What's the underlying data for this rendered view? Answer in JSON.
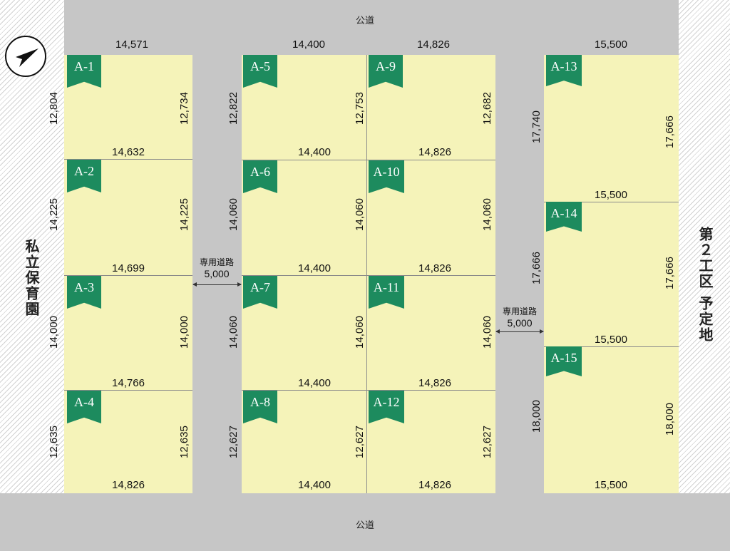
{
  "roads": {
    "top": "公道",
    "bottom": "公道"
  },
  "side_labels": {
    "left": "私立保育園",
    "right": "第２工区 予定地"
  },
  "private_roads": [
    {
      "label": "専用道路",
      "width": "5,000"
    },
    {
      "label": "専用道路",
      "width": "5,000"
    }
  ],
  "north_icon": "north-arrow-icon",
  "colors": {
    "lot": "#f5f3b9",
    "tag": "#1d8b5e",
    "road": "#c6c6c6"
  },
  "lots": [
    {
      "id": "A-1"
    },
    {
      "id": "A-2"
    },
    {
      "id": "A-3"
    },
    {
      "id": "A-4"
    },
    {
      "id": "A-5"
    },
    {
      "id": "A-6"
    },
    {
      "id": "A-7"
    },
    {
      "id": "A-8"
    },
    {
      "id": "A-9"
    },
    {
      "id": "A-10"
    },
    {
      "id": "A-11"
    },
    {
      "id": "A-12"
    },
    {
      "id": "A-13"
    },
    {
      "id": "A-14"
    },
    {
      "id": "A-15"
    }
  ],
  "dims": {
    "col1_widths": [
      "14,571",
      "14,632",
      "14,699",
      "14,766",
      "14,826"
    ],
    "col1_left": [
      "12,804",
      "14,225",
      "14,000",
      "12,635"
    ],
    "col1_right": [
      "12,734",
      "14,225",
      "14,000",
      "12,635"
    ],
    "col2_widths": [
      "14,400",
      "14,400",
      "14,400",
      "14,400",
      "14,400"
    ],
    "col2_left": [
      "12,822",
      "14,060",
      "14,060",
      "12,627"
    ],
    "col2_right": [
      "12,753",
      "14,060",
      "14,060",
      "12,627"
    ],
    "col3_widths": [
      "14,826",
      "14,826",
      "14,826",
      "14,826",
      "14,826"
    ],
    "col3_right": [
      "12,682",
      "14,060",
      "14,060",
      "12,627"
    ],
    "col4_widths": [
      "15,500",
      "15,500",
      "15,500",
      "15,500"
    ],
    "col4_left": [
      "17,740",
      "17,666",
      "18,000"
    ],
    "col4_right": [
      "17,666",
      "17,666",
      "18,000"
    ]
  }
}
